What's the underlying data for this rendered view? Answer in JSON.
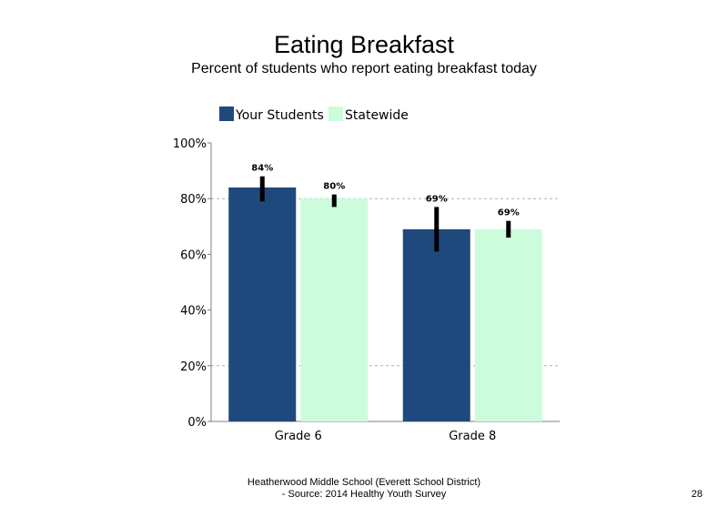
{
  "chart_data": {
    "type": "bar",
    "title": "Eating Breakfast",
    "subtitle": "Percent of students who report eating breakfast today",
    "categories": [
      "Grade 6",
      "Grade 8"
    ],
    "series": [
      {
        "name": "Your Students",
        "color": "#1f497d",
        "values": [
          84,
          69
        ],
        "labels": [
          "84%",
          "69%"
        ],
        "error_low": [
          79,
          61
        ],
        "error_high": [
          88,
          77
        ]
      },
      {
        "name": "Statewide",
        "color": "#ccfcdc",
        "values": [
          80,
          69
        ],
        "labels": [
          "80%",
          "69%"
        ],
        "error_low": [
          77,
          66
        ],
        "error_high": [
          81.5,
          72
        ]
      }
    ],
    "ylim": [
      0,
      100
    ],
    "yticks": [
      0,
      20,
      40,
      60,
      80,
      100
    ],
    "ytick_labels": [
      "0%",
      "20%",
      "40%",
      "60%",
      "80%",
      "100%"
    ],
    "gridlines": [
      20,
      80
    ],
    "legend_position": "top"
  },
  "footer": {
    "line1": "Heatherwood Middle School (Everett School District)",
    "line2": "- Source: 2014 Healthy Youth Survey"
  },
  "page_number": "28"
}
